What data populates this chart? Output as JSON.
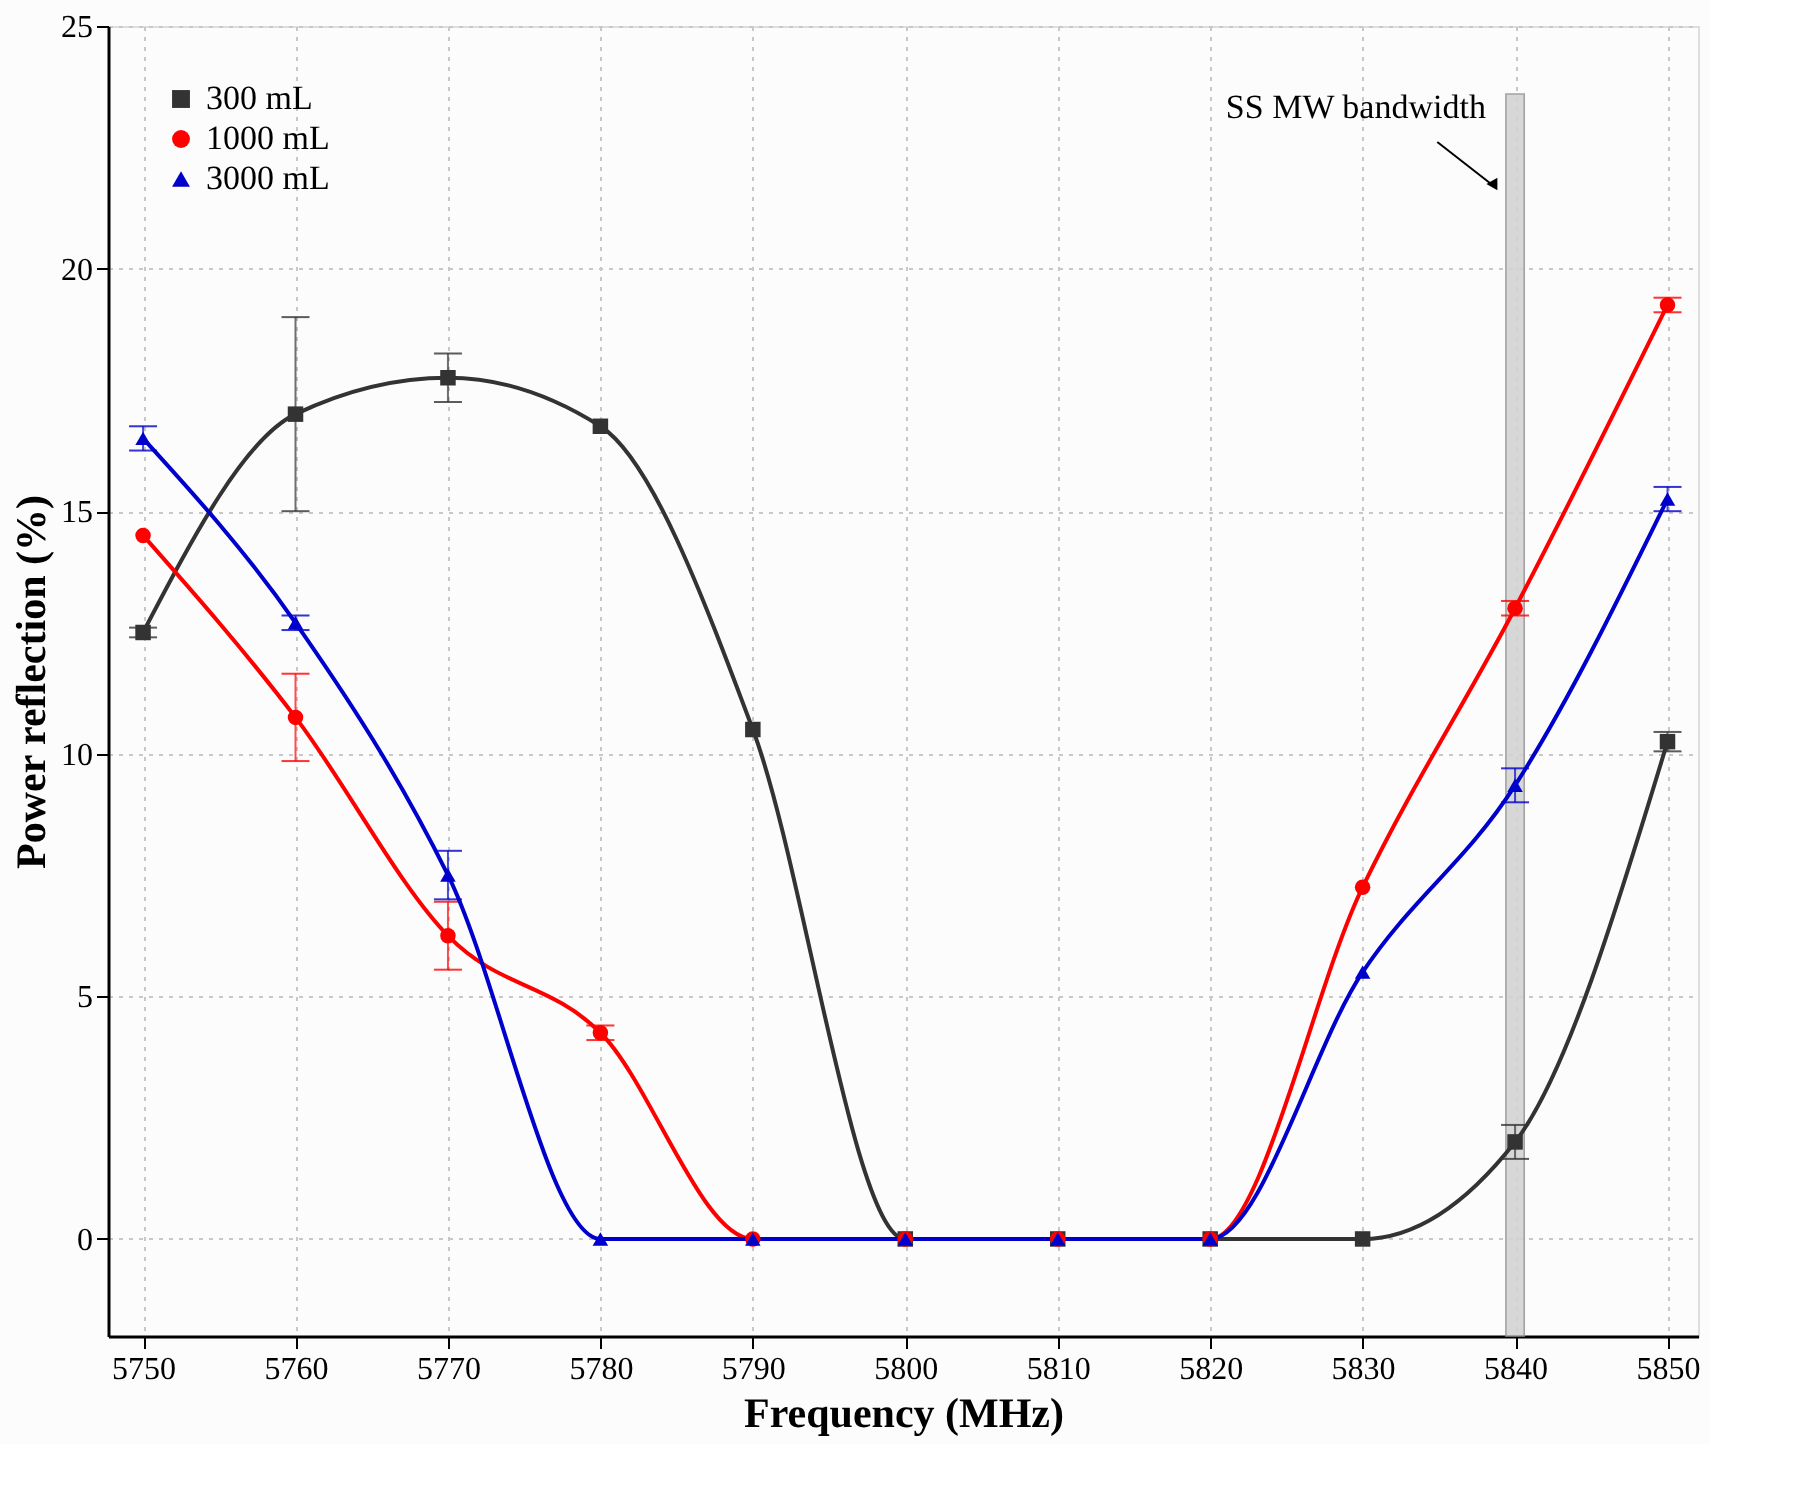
{
  "chart_data": {
    "type": "line",
    "xlabel": "Frequency (MHz)",
    "ylabel": "Power reflection (%)",
    "x": [
      5750,
      5760,
      5770,
      5780,
      5790,
      5800,
      5810,
      5820,
      5830,
      5840,
      5850
    ],
    "series": [
      {
        "name": "300 mL",
        "color": "#333333",
        "marker": "square",
        "values": [
          12.5,
          17,
          17.75,
          16.75,
          10.5,
          0,
          0,
          0,
          0,
          2,
          10.25
        ],
        "errors": [
          0.1,
          2,
          0.5,
          null,
          null,
          null,
          null,
          null,
          null,
          0.35,
          0.2
        ]
      },
      {
        "name": "1000 mL",
        "color": "#ff0000",
        "marker": "circle",
        "values": [
          14.5,
          10.75,
          6.25,
          4.25,
          0,
          0,
          0,
          0,
          7.25,
          13,
          19.25
        ],
        "errors": [
          null,
          0.9,
          0.7,
          0.15,
          null,
          null,
          null,
          null,
          null,
          0.15,
          0.15
        ]
      },
      {
        "name": "3000 mL",
        "color": "#0000cc",
        "marker": "triangle",
        "values": [
          16.5,
          12.7,
          7.5,
          0,
          0,
          0,
          0,
          0,
          5.5,
          9.35,
          15.25
        ],
        "errors": [
          0.25,
          0.15,
          0.5,
          null,
          null,
          null,
          null,
          null,
          null,
          0.35,
          0.25
        ]
      }
    ],
    "xlim": [
      5747.7,
      5852
    ],
    "xticks": [
      5750,
      5760,
      5770,
      5780,
      5790,
      5800,
      5810,
      5820,
      5830,
      5840,
      5850
    ],
    "ylim": [
      -2,
      25
    ],
    "yticks": [
      0,
      5,
      10,
      15,
      20,
      25
    ],
    "bands": [
      {
        "axis": "x",
        "from": 5839.4,
        "to": 5840.6,
        "label": "SS MW bandwidth",
        "color": "#d3d3d3"
      }
    ],
    "grid": true,
    "legend": "top left",
    "line_style": "solid"
  }
}
